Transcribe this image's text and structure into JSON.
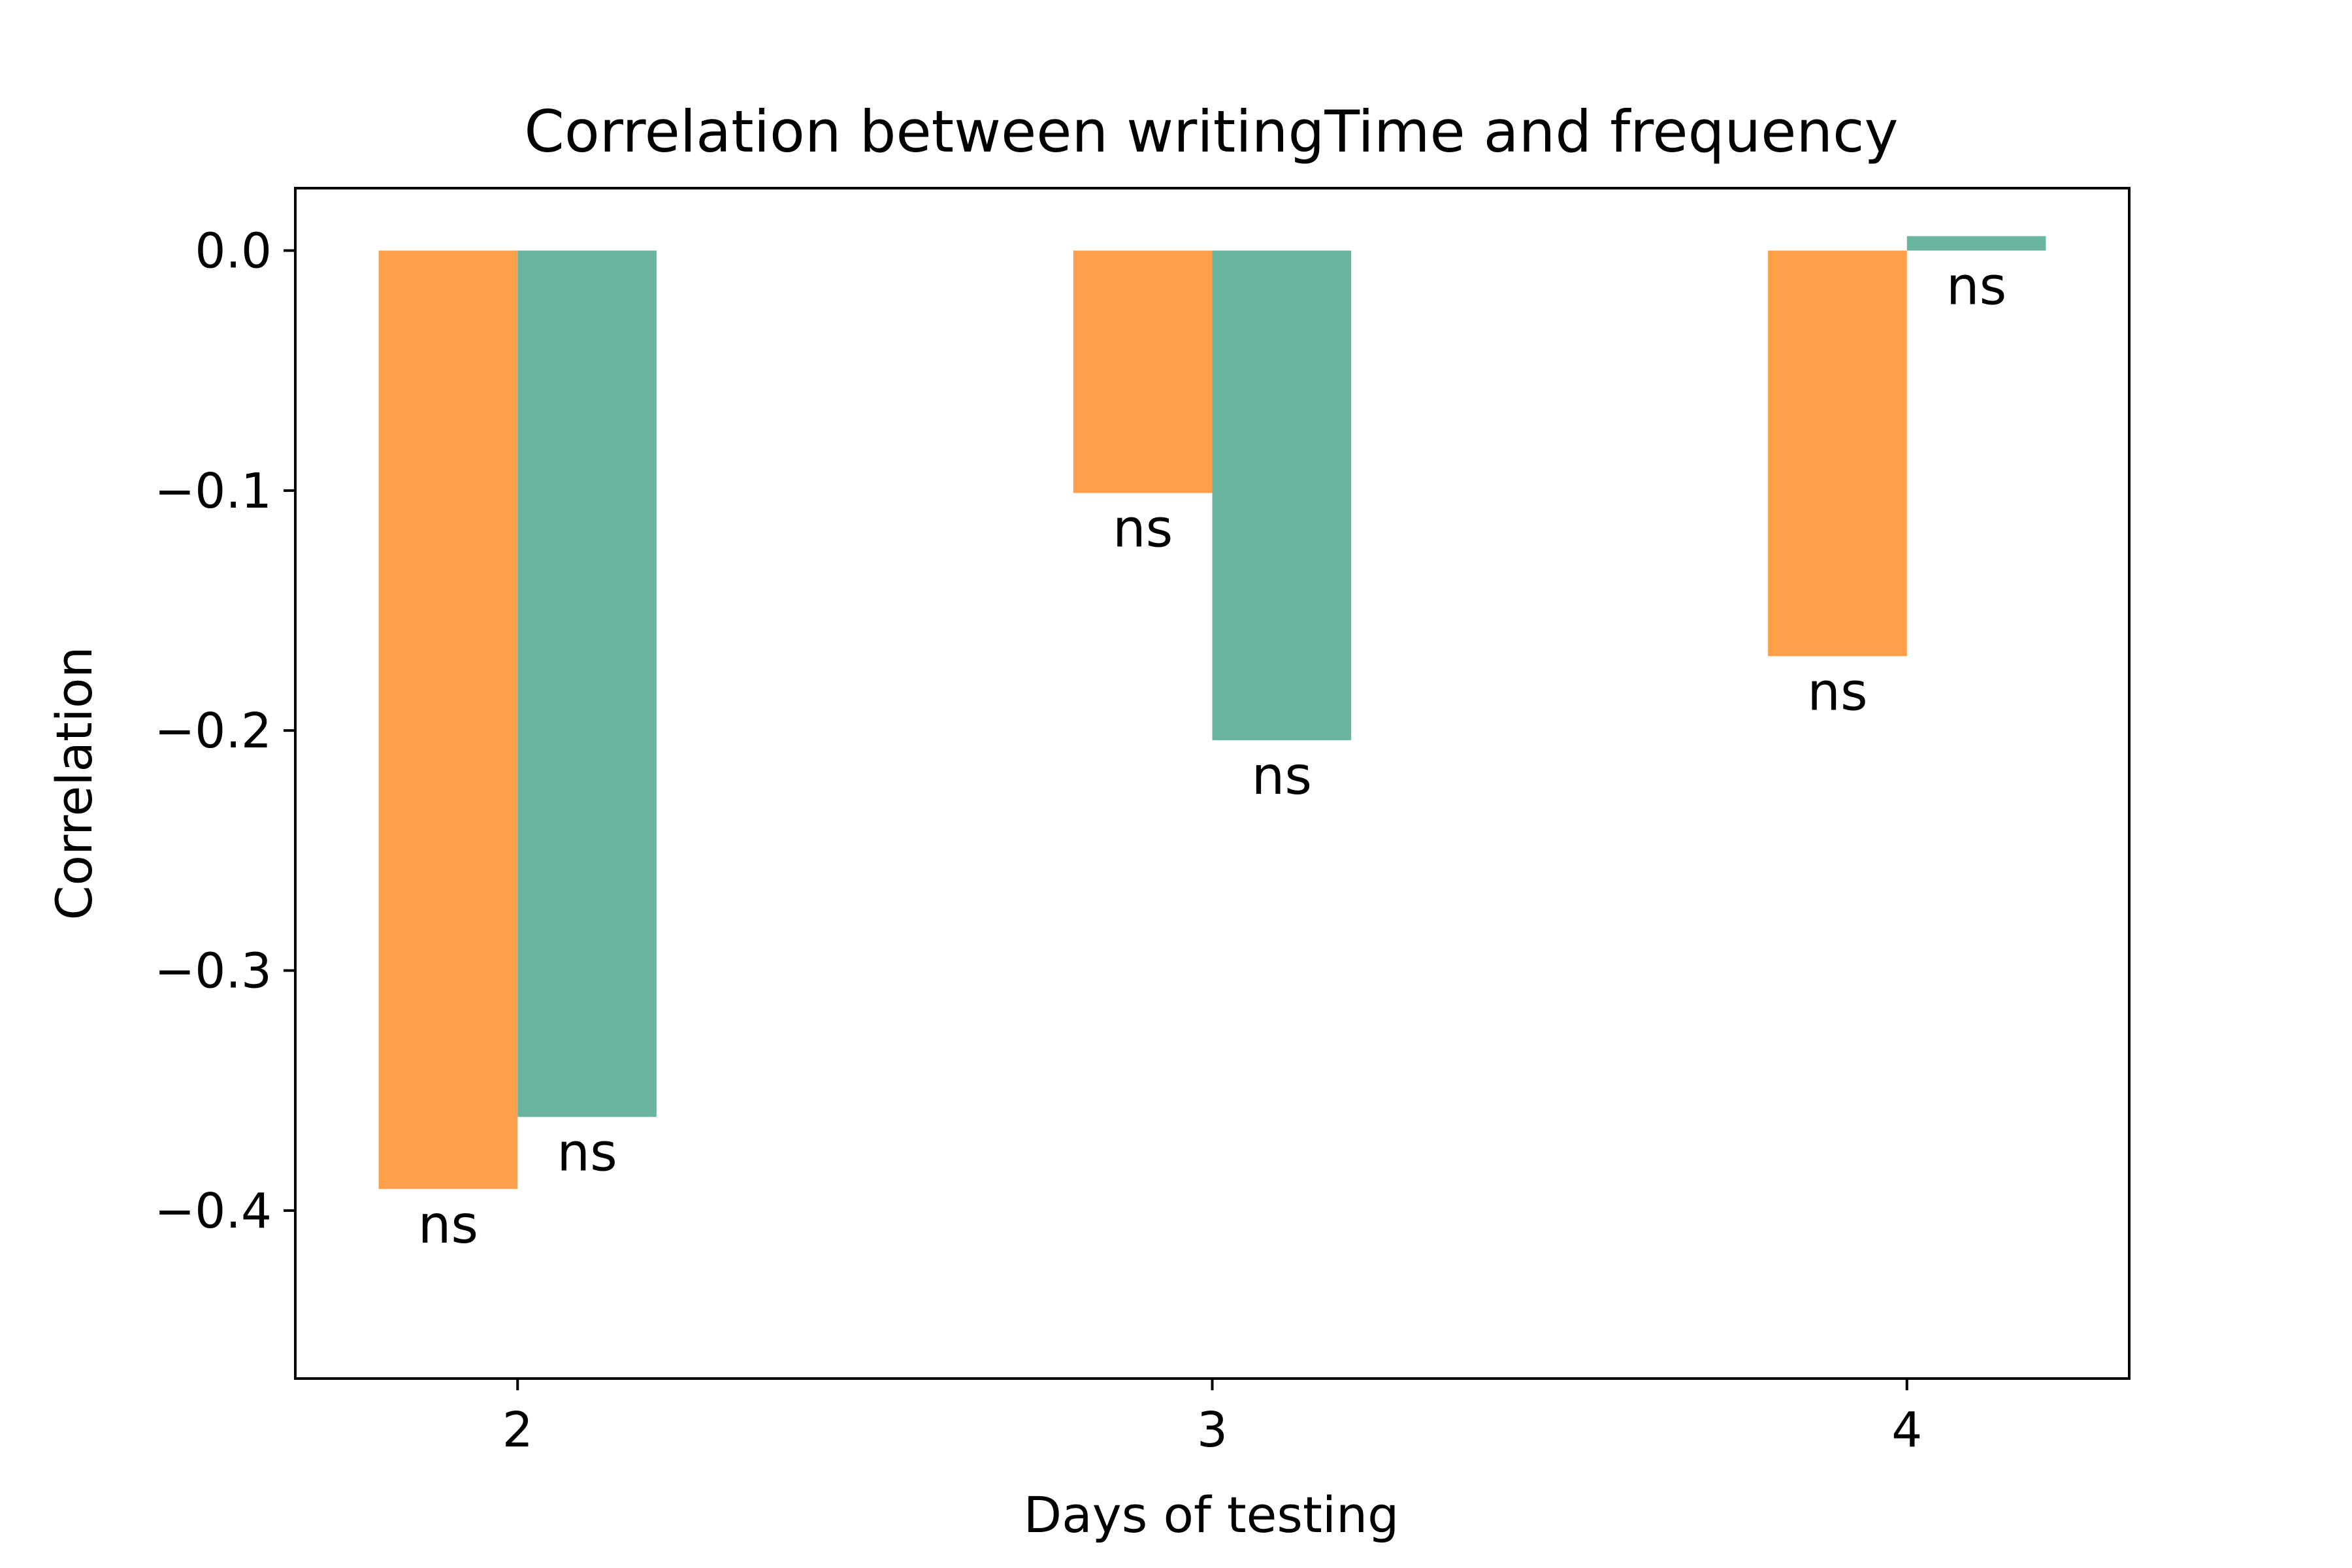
{
  "chart_data": {
    "type": "bar",
    "title": "Correlation between writingTime and frequency",
    "xlabel": "Days of testing",
    "ylabel": "Correlation",
    "categories": [
      "2",
      "3",
      "4"
    ],
    "ylim": [
      -0.47,
      0.026
    ],
    "yticks": [
      0.0,
      -0.1,
      -0.2,
      -0.3,
      -0.4
    ],
    "ytick_labels": [
      "0.0",
      "−0.1",
      "−0.2",
      "−0.3",
      "−0.4"
    ],
    "grid": false,
    "legend": "none",
    "series": [
      {
        "color": "#FF9F4A",
        "values": [
          -0.391,
          -0.101,
          -0.169
        ],
        "labels": [
          "ns",
          "ns",
          "ns"
        ]
      },
      {
        "color": "#6BB5A0",
        "values": [
          -0.361,
          -0.204,
          0.006
        ],
        "labels": [
          "ns",
          "ns",
          "ns"
        ]
      }
    ]
  }
}
